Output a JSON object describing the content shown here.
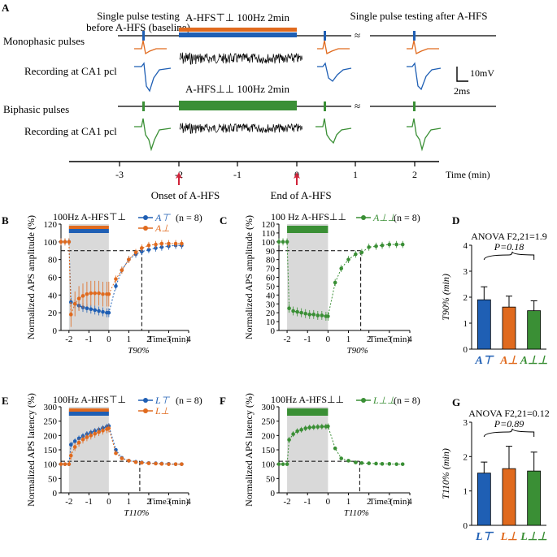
{
  "colors": {
    "blue": "#1f5fb4",
    "orange": "#e06a1e",
    "green": "#3a8f35",
    "shade": "#d9d9d9"
  },
  "panelA": {
    "letter": "A",
    "baseline_label": "Single pulse testing\nbefore A-HFS (baseline)",
    "after_label": "Single pulse testing after A-HFS",
    "mono_hfs_label": "A-HFS⊤⊥ 100Hz 2min",
    "bi_hfs_label": "A-HFS⊥⊥ 100Hz 2min",
    "mono_label": "Monophasic pulses",
    "rec_label": "Recording at CA1 pcl",
    "bi_label": "Biphasic pulses",
    "scale_v": "10mV",
    "scale_t": "2ms",
    "time_ticks": [
      "-3",
      "-2",
      "-1",
      "0",
      "1",
      "2"
    ],
    "time_label": "Time (min)",
    "onset_label": "Onset of A-HFS",
    "end_label": "End of A-HFS"
  },
  "chart_data": [
    {
      "id": "B",
      "type": "line",
      "title": "100Hz A-HFS⊤⊥",
      "legend": "(n = 8)",
      "ylabel": "Normalized APS amplitude (%)",
      "xlabel": "Time (min)",
      "xlim": [
        -2.4,
        4
      ],
      "ylim": [
        0,
        120
      ],
      "yticks": [
        0,
        20,
        40,
        60,
        80,
        100,
        120
      ],
      "xticks": [
        -2,
        -1,
        0,
        1,
        2,
        3,
        4
      ],
      "threshold": 90,
      "t_marker": 1.65,
      "t_marker_label": "T90%",
      "series": [
        {
          "name": "A⊤",
          "color": "blue",
          "x": [
            -2.4,
            -2.2,
            -2.0,
            -1.9,
            -1.7,
            -1.5,
            -1.3,
            -1.1,
            -0.9,
            -0.7,
            -0.5,
            -0.3,
            -0.1,
            0.0,
            0.35,
            0.65,
            1.0,
            1.35,
            1.65,
            2.0,
            2.35,
            2.65,
            3.0,
            3.35,
            3.65
          ],
          "y": [
            100,
            100,
            100,
            32,
            30,
            28,
            26,
            25,
            24,
            23,
            22,
            21,
            20,
            20,
            50,
            68,
            80,
            86,
            89,
            91,
            93,
            94,
            95,
            96,
            96
          ]
        },
        {
          "name": "A⊥",
          "color": "orange",
          "x": [
            -2.4,
            -2.2,
            -2.0,
            -1.9,
            -1.7,
            -1.5,
            -1.3,
            -1.1,
            -0.9,
            -0.7,
            -0.5,
            -0.3,
            -0.1,
            0.0,
            0.35,
            0.65,
            1.0,
            1.35,
            1.65,
            2.0,
            2.35,
            2.65,
            3.0,
            3.35,
            3.65
          ],
          "y": [
            100,
            100,
            100,
            18,
            30,
            36,
            39,
            41,
            42,
            42,
            42,
            41,
            41,
            41,
            58,
            68,
            80,
            88,
            93,
            96,
            97,
            98,
            98,
            98,
            98
          ]
        }
      ]
    },
    {
      "id": "C",
      "type": "line",
      "title": "100 Hz A-HFS⊥⊥",
      "legend": "(n = 8)",
      "ylabel": "Normalized APS amplitude (%)",
      "xlabel": "Time (min)",
      "xlim": [
        -2.4,
        4
      ],
      "ylim": [
        0,
        120
      ],
      "yticks": [
        0,
        10,
        20,
        30,
        40,
        50,
        60,
        70,
        80,
        90,
        100,
        110,
        120
      ],
      "xticks": [
        -2,
        -1,
        0,
        1,
        2,
        3,
        4
      ],
      "threshold": 90,
      "t_marker": 1.6,
      "t_marker_label": "T90%",
      "series": [
        {
          "name": "A⊥⊥",
          "color": "green",
          "x": [
            -2.4,
            -2.2,
            -2.0,
            -1.9,
            -1.7,
            -1.5,
            -1.3,
            -1.1,
            -0.9,
            -0.7,
            -0.5,
            -0.3,
            -0.1,
            0.0,
            0.35,
            0.65,
            1.0,
            1.35,
            1.65,
            2.0,
            2.35,
            2.65,
            3.0,
            3.35,
            3.65
          ],
          "y": [
            100,
            100,
            100,
            25,
            22,
            21,
            20,
            19,
            18,
            18,
            17,
            17,
            16,
            16,
            54,
            70,
            80,
            86,
            88,
            94,
            95,
            96,
            97,
            97,
            97
          ]
        }
      ]
    },
    {
      "id": "D",
      "type": "bar",
      "ylabel": "T90% (min)",
      "ylim": [
        0,
        4
      ],
      "yticks": [
        0,
        1,
        2,
        3,
        4
      ],
      "categories": [
        "A⊤",
        "A⊥",
        "A⊥⊥"
      ],
      "values": [
        1.9,
        1.62,
        1.48
      ],
      "errors": [
        0.5,
        0.42,
        0.38
      ],
      "bar_colors": [
        "blue",
        "orange",
        "green"
      ],
      "anova": "ANOVA F2,21=1.9",
      "pvalue": "P=0.18"
    },
    {
      "id": "E",
      "type": "line",
      "title": "100Hz A-HFS⊤⊥",
      "legend": "(n = 8)",
      "ylabel": "Normalized APS latency (%)",
      "xlabel": "Time (min)",
      "xlim": [
        -2.4,
        4
      ],
      "ylim": [
        0,
        300
      ],
      "yticks": [
        0,
        50,
        100,
        150,
        200,
        250,
        300
      ],
      "xticks": [
        -2,
        -1,
        0,
        1,
        2,
        3,
        4
      ],
      "threshold": 110,
      "t_marker": 1.55,
      "t_marker_label": "T110%",
      "series": [
        {
          "name": "L⊤",
          "color": "blue",
          "x": [
            -2.4,
            -2.2,
            -2.0,
            -1.9,
            -1.7,
            -1.5,
            -1.3,
            -1.1,
            -0.9,
            -0.7,
            -0.5,
            -0.3,
            -0.1,
            0.0,
            0.35,
            0.65,
            1.0,
            1.35,
            1.65,
            2.0,
            2.35,
            2.65,
            3.0,
            3.35,
            3.65
          ],
          "y": [
            100,
            100,
            100,
            168,
            180,
            190,
            198,
            205,
            210,
            216,
            220,
            226,
            231,
            233,
            150,
            122,
            112,
            108,
            106,
            104,
            103,
            102,
            101,
            100,
            100
          ]
        },
        {
          "name": "L⊥",
          "color": "orange",
          "x": [
            -2.4,
            -2.2,
            -2.0,
            -1.9,
            -1.7,
            -1.5,
            -1.3,
            -1.1,
            -0.9,
            -0.7,
            -0.5,
            -0.3,
            -0.1,
            0.0,
            0.35,
            0.65,
            1.0,
            1.35,
            1.65,
            2.0,
            2.35,
            2.65,
            3.0,
            3.35,
            3.65
          ],
          "y": [
            100,
            100,
            100,
            130,
            160,
            175,
            186,
            194,
            200,
            206,
            212,
            217,
            222,
            225,
            138,
            120,
            112,
            107,
            105,
            103,
            102,
            101,
            100,
            100,
            100
          ]
        }
      ]
    },
    {
      "id": "F",
      "type": "line",
      "title": "100Hz A-HFS⊥⊥",
      "legend": "(n = 8)",
      "ylabel": "Normalized APS latency (%)",
      "xlabel": "Time (min)",
      "xlim": [
        -2.4,
        4
      ],
      "ylim": [
        0,
        300
      ],
      "yticks": [
        0,
        50,
        100,
        150,
        200,
        250,
        300
      ],
      "xticks": [
        -2,
        -1,
        0,
        1,
        2,
        3,
        4
      ],
      "threshold": 110,
      "t_marker": 1.55,
      "t_marker_label": "T110%",
      "series": [
        {
          "name": "L⊥⊥",
          "color": "green",
          "x": [
            -2.4,
            -2.2,
            -2.0,
            -1.9,
            -1.7,
            -1.5,
            -1.3,
            -1.1,
            -0.9,
            -0.7,
            -0.5,
            -0.3,
            -0.1,
            0.0,
            0.35,
            0.65,
            1.0,
            1.35,
            1.65,
            2.0,
            2.35,
            2.65,
            3.0,
            3.35,
            3.65
          ],
          "y": [
            100,
            100,
            100,
            185,
            205,
            215,
            220,
            225,
            228,
            229,
            230,
            231,
            231,
            232,
            155,
            120,
            112,
            106,
            104,
            103,
            102,
            101,
            101,
            100,
            100
          ]
        }
      ]
    },
    {
      "id": "G",
      "type": "bar",
      "ylabel": "T110% (min)",
      "ylim": [
        0,
        3
      ],
      "yticks": [
        0,
        1,
        2,
        3
      ],
      "categories": [
        "L⊤",
        "L⊥",
        "L⊥⊥"
      ],
      "values": [
        1.52,
        1.65,
        1.58
      ],
      "errors": [
        0.32,
        0.65,
        0.55
      ],
      "bar_colors": [
        "blue",
        "orange",
        "green"
      ],
      "anova": "ANOVA F2,21=0.12",
      "pvalue": "P=0.89"
    }
  ]
}
